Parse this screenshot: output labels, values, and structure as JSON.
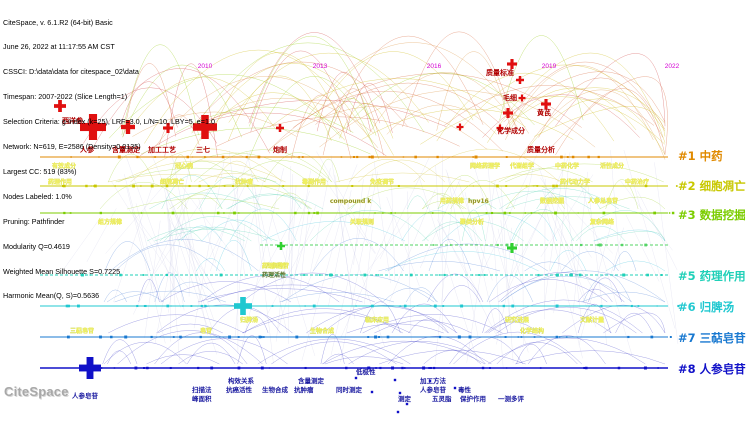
{
  "header": {
    "lines": [
      "CiteSpace, v. 6.1.R2 (64-bit) Basic",
      "June 26, 2022 at 11:17:55 AM CST",
      "CSSCI: D:\\data\\data for citespace_02\\data",
      "Timespan: 2007-2022 (Slice Length=1)",
      "Selection Criteria: g-index (k=25), LRF=3.0, L/N=10, LBY=5, e=1.0",
      "Network: N=619, E=2586 (Density=0.0135)",
      "Largest CC: 519 (83%)",
      "Nodes Labeled: 1.0%",
      "Pruning: Pathfinder",
      "Modularity Q=0.4619",
      "Weighted Mean Silhouette S=0.7225",
      "Harmonic Mean(Q, S)=0.5636"
    ]
  },
  "timeline": {
    "years": [
      "2010",
      "2013",
      "2016",
      "2019",
      "2022"
    ]
  },
  "clusters": [
    {
      "label": "#1 中药",
      "color": "#e08a00"
    },
    {
      "label": "#2 细胞凋亡",
      "color": "#c8c800"
    },
    {
      "label": "#3 数据挖掘",
      "color": "#7ccd00"
    },
    {
      "label": "#5 药理作用",
      "color": "#20d0b8"
    },
    {
      "label": "#6 归脾汤",
      "color": "#20c8d0"
    },
    {
      "label": "#7 三萜皂苷",
      "color": "#1878d0"
    },
    {
      "label": "#8 人参皂苷",
      "color": "#1010c8"
    }
  ],
  "top_keywords": [
    "质量标准",
    "毛细",
    "化学成分",
    "黄芪",
    "西洋参",
    "人参",
    "含量测定",
    "加工工艺",
    "三七",
    "炮制",
    "质量分析"
  ],
  "row_keywords": {
    "c1": [
      "有效成分",
      "冠心病",
      "网络药理学",
      "代谢组学",
      "中药化学",
      "活性成分"
    ],
    "c2": [
      "药理作用",
      "细胞凋亡",
      "抗肿瘤",
      "毒副作用",
      "免疫调节",
      "药代动力学",
      "中药治疗"
    ],
    "c3": [
      "compound k",
      "数据挖掘",
      "用药规律",
      "hpv16",
      "人参总皂苷"
    ],
    "c3b": [
      "组方规律",
      "关联规则",
      "聚类分析",
      "复杂网络"
    ],
    "c5": [
      "人参皂苷",
      "药理活性"
    ],
    "c6": [
      "归脾汤",
      "临床应用",
      "研究进展",
      "文献计量"
    ],
    "c7": [
      "三萜皂苷",
      "皂苷",
      "生物合成",
      "化学结构"
    ],
    "c8": [
      "人参皂苷",
      "构效关系",
      "扫描法",
      "峰面积",
      "抗癌活性",
      "生物合成",
      "含量测定",
      "抗肿瘤",
      "同时测定",
      "加工方法",
      "人参皂苷",
      "毒性",
      "保护作用",
      "一测多评",
      "五灵脂",
      "测定",
      "低极性"
    ]
  },
  "logo_text": "CiteSpace"
}
